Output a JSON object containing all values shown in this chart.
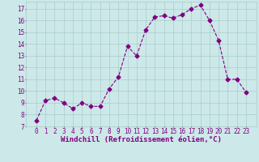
{
  "x": [
    0,
    1,
    2,
    3,
    4,
    5,
    6,
    7,
    8,
    9,
    10,
    11,
    12,
    13,
    14,
    15,
    16,
    17,
    18,
    19,
    20,
    21,
    22,
    23
  ],
  "y": [
    7.5,
    9.2,
    9.4,
    9.0,
    8.5,
    9.0,
    8.7,
    8.7,
    10.2,
    11.2,
    13.8,
    13.0,
    15.2,
    16.3,
    16.4,
    16.2,
    16.5,
    17.0,
    17.3,
    16.0,
    14.3,
    11.0,
    11.0,
    9.9
  ],
  "line_color": "#800080",
  "marker": "D",
  "markersize": 2.5,
  "linewidth": 0.8,
  "linestyle": "--",
  "bg_color": "#cce8e8",
  "grid_color": "#aacccc",
  "xlabel": "Windchill (Refroidissement éolien,°C)",
  "xlabel_fontsize": 6.5,
  "tick_fontsize": 5.5,
  "ylim": [
    7,
    17.6
  ],
  "yticks": [
    7,
    8,
    9,
    10,
    11,
    12,
    13,
    14,
    15,
    16,
    17
  ],
  "xticks": [
    0,
    1,
    2,
    3,
    4,
    5,
    6,
    7,
    8,
    9,
    10,
    11,
    12,
    13,
    14,
    15,
    16,
    17,
    18,
    19,
    20,
    21,
    22,
    23
  ]
}
